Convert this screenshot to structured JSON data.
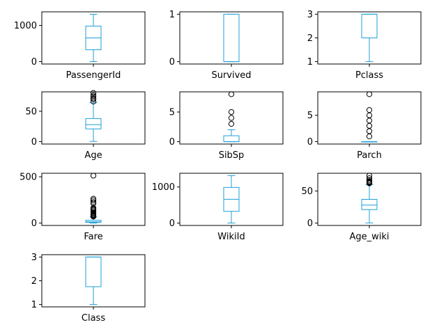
{
  "chart_data": [
    {
      "type": "box",
      "xlabel": "PassengerId",
      "ylim": [
        -65.5,
        1376.5
      ],
      "yticks": [
        0,
        1000
      ],
      "color": "#1f9fd8",
      "box": {
        "whislo": 1,
        "q1": 328,
        "med": 655,
        "q3": 982,
        "whishi": 1309
      },
      "outliers": []
    },
    {
      "type": "box",
      "xlabel": "Survived",
      "ylim": [
        -0.05,
        1.05
      ],
      "yticks": [
        0,
        1
      ],
      "color": "#1f9fd8",
      "box": {
        "whislo": 0,
        "q1": 0,
        "med": 0,
        "q3": 1,
        "whishi": 1
      },
      "outliers": []
    },
    {
      "type": "box",
      "xlabel": "Pclass",
      "ylim": [
        0.9,
        3.1
      ],
      "yticks": [
        1,
        2,
        3
      ],
      "color": "#1f9fd8",
      "box": {
        "whislo": 1,
        "q1": 2,
        "med": 3,
        "q3": 3,
        "whishi": 3
      },
      "outliers": []
    },
    {
      "type": "box",
      "xlabel": "Age",
      "ylim": [
        -3.9,
        81.9
      ],
      "yticks": [
        0,
        50
      ],
      "color": "#1f9fd8",
      "box": {
        "whislo": 0.4,
        "q1": 21,
        "med": 28,
        "q3": 38,
        "whishi": 64
      },
      "outliers": [
        66,
        70,
        71,
        74,
        76,
        80
      ]
    },
    {
      "type": "box",
      "xlabel": "SibSp",
      "ylim": [
        -0.4,
        8.4
      ],
      "yticks": [
        0,
        5
      ],
      "color": "#1f9fd8",
      "box": {
        "whislo": 0,
        "q1": 0,
        "med": 0,
        "q3": 1,
        "whishi": 2
      },
      "outliers": [
        3,
        4,
        5,
        8
      ]
    },
    {
      "type": "box",
      "xlabel": "Parch",
      "ylim": [
        -0.45,
        9.45
      ],
      "yticks": [
        0,
        5
      ],
      "color": "#1f9fd8",
      "box": {
        "whislo": 0,
        "q1": 0,
        "med": 0,
        "q3": 0,
        "whishi": 0
      },
      "outliers": [
        1,
        2,
        3,
        4,
        5,
        6,
        9
      ]
    },
    {
      "type": "box",
      "xlabel": "Fare",
      "ylim": [
        -25.6,
        537.9
      ],
      "yticks": [
        0,
        500
      ],
      "color": "#1f9fd8",
      "box": {
        "whislo": 0,
        "q1": 8,
        "med": 14,
        "q3": 31,
        "whishi": 66
      },
      "outliers": [
        70,
        78,
        83,
        90,
        100,
        110,
        120,
        135,
        146,
        153,
        164,
        211,
        227,
        247,
        263,
        512
      ]
    },
    {
      "type": "box",
      "xlabel": "WikiId",
      "ylim": [
        -65,
        1379
      ],
      "yticks": [
        0,
        1000
      ],
      "color": "#1f9fd8",
      "box": {
        "whislo": 1,
        "q1": 326,
        "med": 660,
        "q3": 987,
        "whishi": 1314
      },
      "outliers": []
    },
    {
      "type": "box",
      "xlabel": "Age_wiki",
      "ylim": [
        -3.7,
        77.7
      ],
      "yticks": [
        0,
        50
      ],
      "color": "#1f9fd8",
      "box": {
        "whislo": 0.2,
        "q1": 21,
        "med": 28,
        "q3": 37,
        "whishi": 60
      },
      "outliers": [
        62,
        63,
        64,
        65,
        67,
        70,
        74
      ]
    },
    {
      "type": "box",
      "xlabel": "Class",
      "ylim": [
        0.9,
        3.1
      ],
      "yticks": [
        1,
        2,
        3
      ],
      "color": "#1f9fd8",
      "box": {
        "whislo": 1,
        "q1": 1.75,
        "med": 3,
        "q3": 3,
        "whishi": 3
      },
      "outliers": []
    }
  ]
}
